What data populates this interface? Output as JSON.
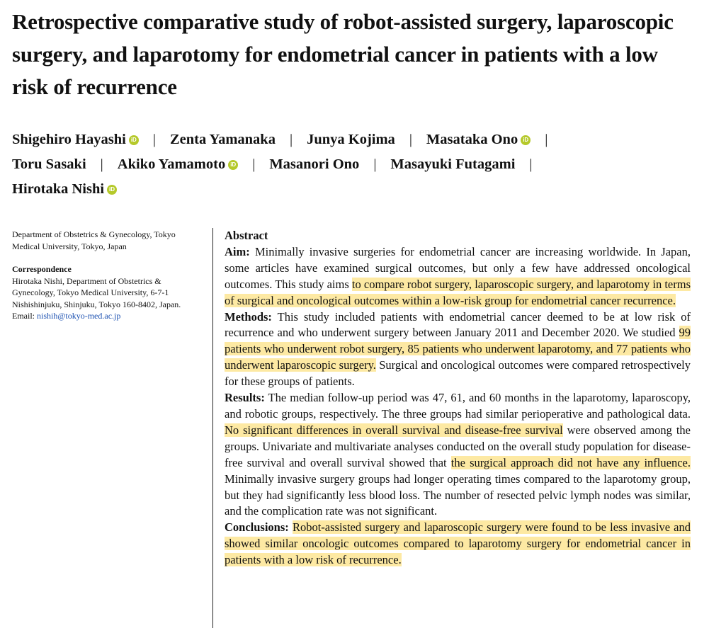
{
  "title": "Retrospective comparative study of robot-assisted surgery, laparoscopic surgery, and laparotomy for endometrial cancer in patients with a low risk of recurrence",
  "authors": [
    {
      "name": "Shigehiro Hayashi",
      "orcid": true
    },
    {
      "name": "Zenta Yamanaka",
      "orcid": false
    },
    {
      "name": "Junya Kojima",
      "orcid": false
    },
    {
      "name": "Masataka Ono",
      "orcid": true
    },
    {
      "name": "Toru Sasaki",
      "orcid": false
    },
    {
      "name": "Akiko Yamamoto",
      "orcid": true
    },
    {
      "name": "Masanori Ono",
      "orcid": false
    },
    {
      "name": "Masayuki Futagami",
      "orcid": false
    },
    {
      "name": "Hirotaka Nishi",
      "orcid": true
    }
  ],
  "orcid_glyph": "iD",
  "separator": "|",
  "affiliation": "Department of Obstetrics & Gynecology, Tokyo Medical University, Tokyo, Japan",
  "correspondence": {
    "heading": "Correspondence",
    "text": "Hirotaka Nishi, Department of Obstetrics & Gynecology, Tokyo Medical University, 6-7-1 Nishishinjuku, Shinjuku, Tokyo 160-8402, Japan.",
    "email_label": "Email: ",
    "email": "nishih@tokyo-med.ac.jp"
  },
  "abstract": {
    "heading": "Abstract",
    "aim": {
      "label": "Aim:",
      "text1": " Minimally invasive surgeries for endometrial cancer are increasing worldwide. In Japan, some articles have examined surgical outcomes, but only a few have addressed oncological outcomes. This study aims ",
      "highlight1": "to compare robot surgery, laparoscopic surgery, and laparotomy in terms of surgical and oncological outcomes within a low-risk group for endometrial cancer recurrence."
    },
    "methods": {
      "label": "Methods:",
      "text1": " This study included patients with endometrial cancer deemed to be at low risk of recurrence and who underwent surgery between January 2011 and December 2020. We studied ",
      "highlight1": "99 patients who underwent robot surgery, 85 patients who underwent laparotomy, and 77 patients who underwent laparoscopic surgery.",
      "text2": " Surgical and oncological outcomes were compared retrospectively for these groups of patients."
    },
    "results": {
      "label": "Results:",
      "text1": " The median follow-up period was 47, 61, and 60 months in the laparotomy, laparoscopy, and robotic groups, respectively. The three groups had similar perioperative and pathological data. ",
      "highlight1": "No significant differences in overall survival and disease-free survival",
      "text2": " were observed among the groups. Univariate and multivariate analyses conducted on the overall study population for disease-free survival and overall survival showed that ",
      "highlight2": "the surgical approach did not have any influence.",
      "text3": " Minimally invasive surgery groups had longer operating times compared to the laparotomy group, but they had significantly less blood loss. The number of resected pelvic lymph nodes was similar, and the complication rate was not significant."
    },
    "conclusions": {
      "label": "Conclusions:",
      "text1": " ",
      "highlight1": "Robot-assisted surgery and laparoscopic surgery were found to be less invasive and showed similar oncologic outcomes compared to laparotomy surgery for endometrial cancer in patients with a low risk of recurrence."
    }
  },
  "colors": {
    "highlight": "#fde9a3",
    "orcid": "#b5c92a",
    "link": "#1a4fb0"
  }
}
